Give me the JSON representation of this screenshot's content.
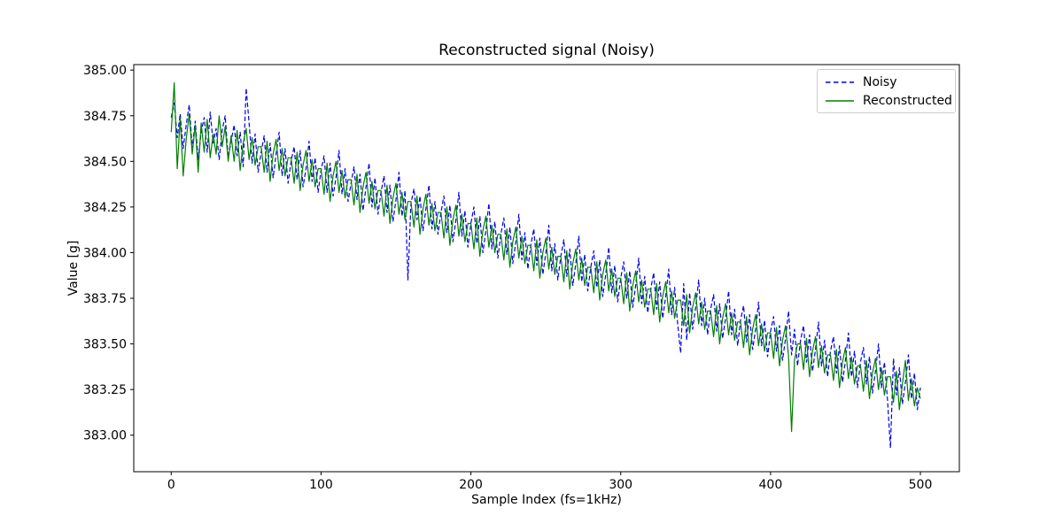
{
  "chart_data": {
    "type": "line",
    "title": "Reconstructed signal (Noisy)",
    "xlabel": "Sample Index (fs=1kHz)",
    "ylabel": "Value [g]",
    "xlim": [
      -25,
      526
    ],
    "ylim": [
      382.8,
      385.03
    ],
    "xticks": [
      0,
      100,
      200,
      300,
      400,
      500
    ],
    "yticks": [
      383.0,
      383.25,
      383.5,
      383.75,
      384.0,
      384.25,
      384.5,
      384.75,
      385.0
    ],
    "ytick_decimals": 2,
    "grid": false,
    "legend_position": "upper right",
    "series": [
      {
        "name": "Noisy",
        "color": "#0000ee",
        "line_style": "dashed",
        "dash": "5,2.6",
        "x_start": 0,
        "x_step": 2,
        "values": [
          384.74,
          384.82,
          384.63,
          384.76,
          384.57,
          384.7,
          384.81,
          384.57,
          384.72,
          384.51,
          384.66,
          384.74,
          384.55,
          384.77,
          384.6,
          384.68,
          384.51,
          384.67,
          384.75,
          384.52,
          384.61,
          384.7,
          384.53,
          384.66,
          384.47,
          384.9,
          384.71,
          384.49,
          384.65,
          384.44,
          384.55,
          384.64,
          384.44,
          384.6,
          384.41,
          384.54,
          384.66,
          384.42,
          384.57,
          384.38,
          384.5,
          384.58,
          384.4,
          384.56,
          384.36,
          384.46,
          384.61,
          384.39,
          384.52,
          384.33,
          384.45,
          384.53,
          384.33,
          384.49,
          384.31,
          384.41,
          384.56,
          384.32,
          384.46,
          384.28,
          384.38,
          384.47,
          384.29,
          384.43,
          384.23,
          384.36,
          384.49,
          384.25,
          384.41,
          384.21,
          384.33,
          384.42,
          384.22,
          384.37,
          384.17,
          384.29,
          384.44,
          384.2,
          384.34,
          383.85,
          384.27,
          384.35,
          384.18,
          384.31,
          384.12,
          384.24,
          384.37,
          384.13,
          384.28,
          384.1,
          384.22,
          384.31,
          384.11,
          384.26,
          384.06,
          384.18,
          384.33,
          384.09,
          384.23,
          384.03,
          384.16,
          384.25,
          384.05,
          384.2,
          384.0,
          384.12,
          384.27,
          384.02,
          384.17,
          383.97,
          384.1,
          384.19,
          383.99,
          384.14,
          383.94,
          384.06,
          384.21,
          383.96,
          384.11,
          383.91,
          384.04,
          384.13,
          383.93,
          384.08,
          383.88,
          384.0,
          384.15,
          383.9,
          384.05,
          383.85,
          383.98,
          384.07,
          383.87,
          384.02,
          383.82,
          383.94,
          384.09,
          383.84,
          383.99,
          383.79,
          383.92,
          384.01,
          383.81,
          383.96,
          383.76,
          383.88,
          384.03,
          383.78,
          383.93,
          383.73,
          383.86,
          383.95,
          383.75,
          383.9,
          383.7,
          383.82,
          383.97,
          383.72,
          383.87,
          383.67,
          383.8,
          383.89,
          383.69,
          383.84,
          383.64,
          383.76,
          383.91,
          383.66,
          383.81,
          383.61,
          383.45,
          383.83,
          383.52,
          383.78,
          383.58,
          383.7,
          383.85,
          383.6,
          383.75,
          383.55,
          383.69,
          383.77,
          383.57,
          383.72,
          383.53,
          383.64,
          383.79,
          383.55,
          383.69,
          383.49,
          383.63,
          383.71,
          383.51,
          383.66,
          383.47,
          383.58,
          383.73,
          383.49,
          383.63,
          383.43,
          383.57,
          383.65,
          383.46,
          383.6,
          383.41,
          383.53,
          383.68,
          383.44,
          383.58,
          383.38,
          383.52,
          383.6,
          383.4,
          383.55,
          383.35,
          383.47,
          383.62,
          383.38,
          383.52,
          383.32,
          383.46,
          383.54,
          383.34,
          383.49,
          383.29,
          383.41,
          383.56,
          383.32,
          383.46,
          383.26,
          383.4,
          383.48,
          383.28,
          383.43,
          383.23,
          383.35,
          383.5,
          383.26,
          383.4,
          383.2,
          382.93,
          383.42,
          383.22,
          383.37,
          383.17,
          383.29,
          383.44,
          383.2,
          383.34,
          383.14,
          383.26
        ]
      },
      {
        "name": "Reconstructed",
        "color": "#008000",
        "line_style": "solid",
        "dash": null,
        "x_start": 0,
        "x_step": 2,
        "values": [
          384.66,
          384.93,
          384.46,
          384.74,
          384.42,
          384.62,
          384.76,
          384.54,
          384.7,
          384.44,
          384.71,
          384.55,
          384.73,
          384.52,
          384.65,
          384.54,
          384.75,
          384.58,
          384.69,
          384.5,
          384.64,
          384.5,
          384.67,
          384.45,
          384.6,
          384.68,
          384.51,
          384.63,
          384.48,
          384.58,
          384.58,
          384.44,
          384.61,
          384.39,
          384.54,
          384.62,
          384.45,
          384.57,
          384.42,
          384.52,
          384.52,
          384.38,
          384.55,
          384.34,
          384.48,
          384.56,
          384.39,
          384.51,
          384.36,
          384.46,
          384.46,
          384.32,
          384.49,
          384.28,
          384.42,
          384.5,
          384.33,
          384.45,
          384.3,
          384.4,
          384.4,
          384.26,
          384.43,
          384.22,
          384.36,
          384.44,
          384.27,
          384.39,
          384.24,
          384.34,
          384.34,
          384.2,
          384.37,
          384.16,
          384.3,
          384.38,
          384.21,
          384.33,
          384.18,
          384.28,
          384.28,
          384.14,
          384.31,
          384.1,
          384.24,
          384.32,
          384.15,
          384.27,
          384.12,
          384.22,
          384.22,
          384.08,
          384.25,
          384.04,
          384.18,
          384.26,
          384.09,
          384.21,
          384.06,
          384.16,
          384.16,
          384.02,
          384.19,
          383.98,
          384.12,
          384.2,
          384.03,
          384.15,
          384.0,
          384.1,
          384.1,
          383.96,
          384.13,
          383.92,
          384.06,
          384.14,
          383.97,
          384.09,
          383.94,
          384.04,
          384.04,
          383.9,
          384.07,
          383.86,
          384.0,
          384.08,
          383.91,
          384.03,
          383.88,
          383.98,
          383.98,
          383.84,
          384.01,
          383.8,
          383.94,
          384.02,
          383.85,
          383.97,
          383.82,
          383.92,
          383.92,
          383.78,
          383.95,
          383.74,
          383.88,
          383.96,
          383.79,
          383.91,
          383.76,
          383.86,
          383.86,
          383.72,
          383.89,
          383.68,
          383.82,
          383.9,
          383.73,
          383.85,
          383.7,
          383.8,
          383.8,
          383.66,
          383.83,
          383.62,
          383.76,
          383.84,
          383.67,
          383.79,
          383.64,
          383.74,
          383.74,
          383.6,
          383.77,
          383.56,
          383.7,
          383.78,
          383.61,
          383.73,
          383.58,
          383.68,
          383.68,
          383.54,
          383.71,
          383.5,
          383.64,
          383.72,
          383.55,
          383.67,
          383.52,
          383.62,
          383.62,
          383.48,
          383.65,
          383.44,
          383.58,
          383.66,
          383.49,
          383.61,
          383.46,
          383.56,
          383.56,
          383.42,
          383.59,
          383.38,
          383.52,
          383.6,
          383.43,
          383.02,
          383.41,
          383.5,
          383.5,
          383.36,
          383.53,
          383.32,
          383.46,
          383.54,
          383.37,
          383.49,
          383.34,
          383.44,
          383.44,
          383.3,
          383.47,
          383.26,
          383.4,
          383.48,
          383.31,
          383.43,
          383.28,
          383.38,
          383.38,
          383.24,
          383.41,
          383.2,
          383.34,
          383.42,
          383.25,
          383.37,
          383.22,
          383.32,
          383.32,
          383.18,
          383.35,
          383.14,
          383.28,
          383.41,
          383.19,
          383.31,
          383.16,
          383.26,
          383.2
        ]
      }
    ]
  }
}
